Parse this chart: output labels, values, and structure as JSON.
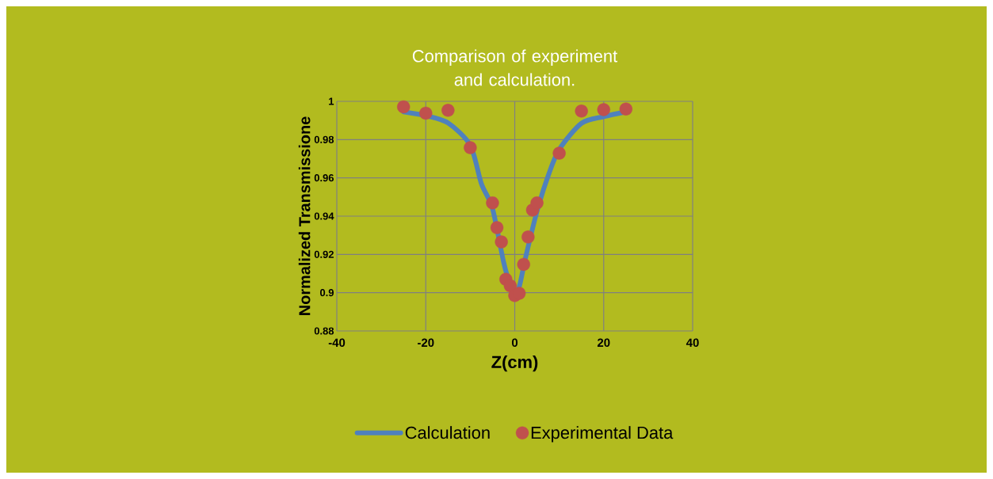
{
  "chart_data": {
    "type": "line",
    "title": "Comparison of experiment and calculation.",
    "xlabel": "Z(cm)",
    "ylabel": "Normalized Transmissione",
    "xlim": [
      -40,
      40
    ],
    "ylim": [
      0.88,
      1
    ],
    "xticks": [
      -40,
      -20,
      0,
      20,
      40
    ],
    "yticks": [
      0.88,
      0.9,
      0.92,
      0.94,
      0.96,
      0.98,
      1
    ],
    "grid": true,
    "legend": "bottom",
    "series": [
      {
        "name": "Calculation",
        "color": "#4f81bd",
        "marker": "none",
        "line_style": "solid",
        "x": [
          -25,
          -20,
          -15,
          -10,
          -7.5,
          -5,
          -2.5,
          -1,
          0,
          1,
          2.5,
          5,
          7.5,
          10,
          15,
          20,
          25
        ],
        "values": [
          0.9945,
          0.9925,
          0.9887,
          0.977,
          0.957,
          0.944,
          0.916,
          0.904,
          0.9007,
          0.903,
          0.919,
          0.9425,
          0.961,
          0.9748,
          0.9885,
          0.992,
          0.9945
        ]
      },
      {
        "name": "Experimental Data",
        "type": "scatter",
        "color": "#c0504d",
        "marker": "circle",
        "x": [
          -25,
          -20,
          -15,
          -10,
          -5,
          -4,
          -3,
          -2,
          -1,
          0,
          1,
          2,
          3,
          4,
          5,
          10,
          15,
          20,
          25
        ],
        "values": [
          0.9971,
          0.9938,
          0.9953,
          0.9758,
          0.9469,
          0.934,
          0.9265,
          0.907,
          0.9036,
          0.8985,
          0.8997,
          0.9148,
          0.9291,
          0.9432,
          0.9469,
          0.9729,
          0.9949,
          0.9957,
          0.996
        ]
      }
    ]
  }
}
